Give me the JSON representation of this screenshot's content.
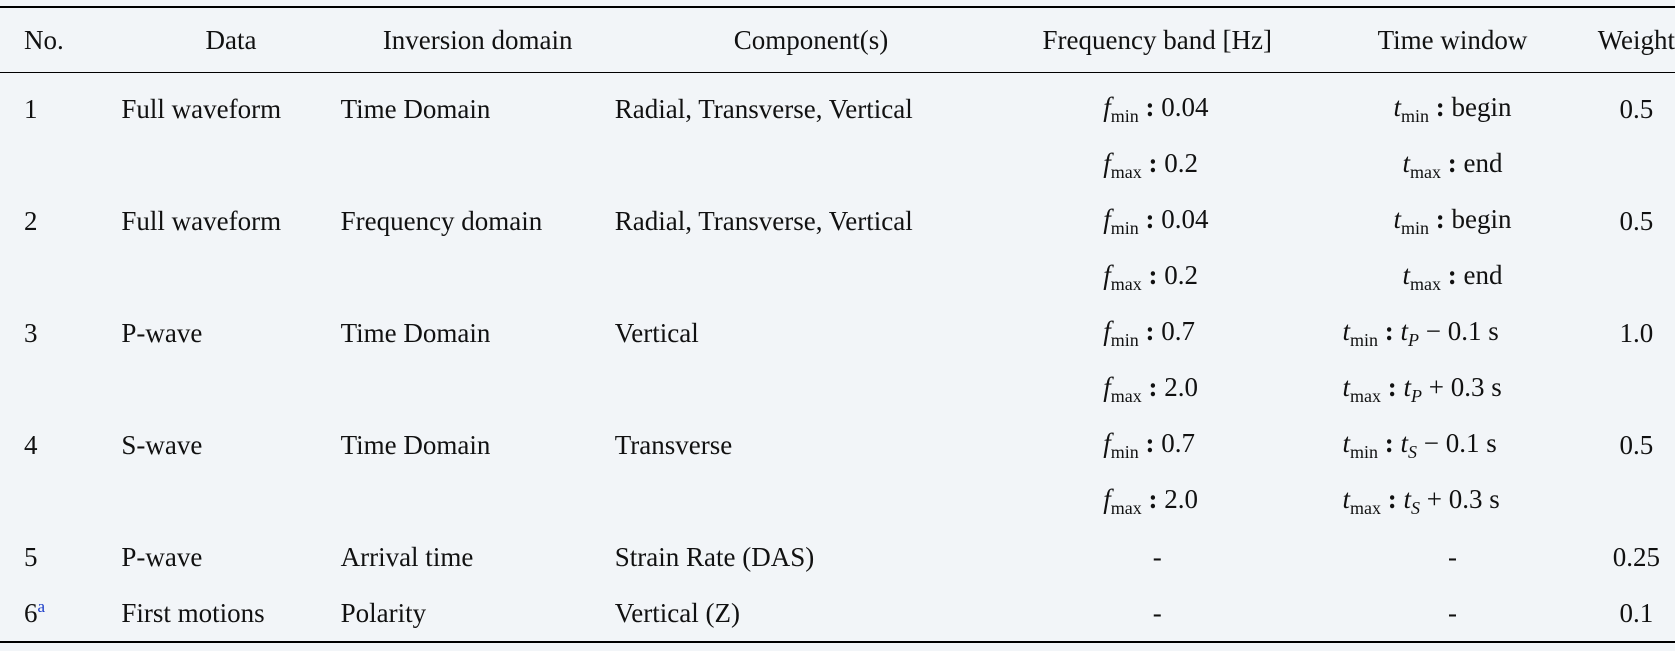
{
  "headers": {
    "no": "No.",
    "data": "Data",
    "domain": "Inversion domain",
    "component": "Component(s)",
    "frequency": "Frequency band [Hz]",
    "time": "Time window",
    "weight": "Weight"
  },
  "rows": [
    {
      "no": "1",
      "data": "Full waveform",
      "domain": "Time Domain",
      "component": "Radial, Transverse, Vertical",
      "fmin": "0.04",
      "fmax": "0.2",
      "tmin": "begin",
      "tmax": "end",
      "weight": "0.5"
    },
    {
      "no": "2",
      "data": "Full waveform",
      "domain": "Frequency domain",
      "component": "Radial, Transverse, Vertical",
      "fmin": "0.04",
      "fmax": "0.2",
      "tmin": "begin",
      "tmax": "end",
      "weight": "0.5"
    },
    {
      "no": "3",
      "data": "P-wave",
      "domain": "Time Domain",
      "component": "Vertical",
      "fmin": "0.7",
      "fmax": "2.0",
      "tmin_offset": "− 0.1 s",
      "tmax_offset": "+ 0.3 s",
      "phase": "P",
      "weight": "1.0"
    },
    {
      "no": "4",
      "data": "S-wave",
      "domain": "Time Domain",
      "component": "Transverse",
      "fmin": "0.7",
      "fmax": "2.0",
      "tmin_offset": "− 0.1 s",
      "tmax_offset": "+ 0.3 s",
      "phase": "S",
      "weight": "0.5"
    },
    {
      "no": "5",
      "data": "P-wave",
      "domain": "Arrival time",
      "component": "Strain Rate (DAS)",
      "freq": "-",
      "time": "-",
      "weight": "0.25"
    },
    {
      "no": "6",
      "note": "a",
      "data": "First motions",
      "domain": "Polarity",
      "component": "Vertical (Z)",
      "freq": "-",
      "time": "-",
      "weight": "0.1"
    }
  ],
  "symbols": {
    "f": "f",
    "t": "t",
    "min": "min",
    "max": "max",
    "colon": ":"
  }
}
